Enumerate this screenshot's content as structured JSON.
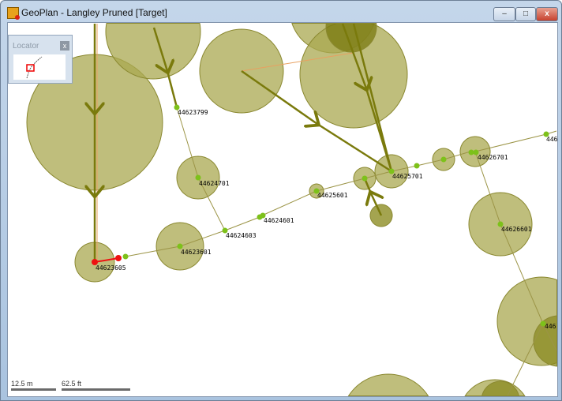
{
  "window": {
    "title": "GeoPlan - Langley Pruned [Target]",
    "minimize": "–",
    "maximize": "□",
    "close": "x"
  },
  "locator": {
    "title": "Locator",
    "close": "x"
  },
  "scale": {
    "metric": "12.5 m",
    "imperial": "62.5 ft"
  },
  "colors": {
    "circle": "#a9a850",
    "pipe": "#9b9446",
    "flow": "#7a7a0c",
    "node": "#7dc11a",
    "selected": "#ee1111"
  },
  "nodes": [
    {
      "id": "44623799"
    },
    {
      "id": "44624701"
    },
    {
      "id": "44624603"
    },
    {
      "id": "44623601"
    },
    {
      "id": "44623605"
    },
    {
      "id": "44624601"
    },
    {
      "id": "44625601"
    },
    {
      "id": "44625701"
    },
    {
      "id": "44626701"
    },
    {
      "id": "44626601"
    },
    {
      "id": "446"
    },
    {
      "id": "446"
    }
  ]
}
